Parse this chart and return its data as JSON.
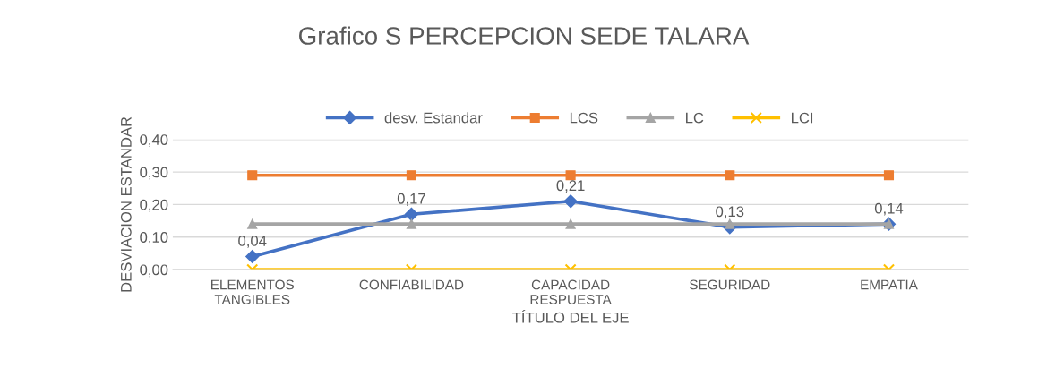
{
  "chart_data": {
    "type": "line",
    "title": "Grafico S PERCEPCION SEDE TALARA",
    "xlabel": "TÍTULO DEL EJE",
    "ylabel": "DESVIACION ESTANDAR",
    "categories": [
      "ELEMENTOS\nTANGIBLES",
      "CONFIABILIDAD",
      "CAPACIDAD\nRESPUESTA",
      "SEGURIDAD",
      "EMPATIA"
    ],
    "series": [
      {
        "name": "desv. Estandar",
        "color": "#4472c4",
        "marker": "diamond",
        "values": [
          0.04,
          0.17,
          0.21,
          0.13,
          0.14
        ],
        "value_labels": [
          "0,04",
          "0,17",
          "0,21",
          "0,13",
          "0,14"
        ]
      },
      {
        "name": "LCS",
        "color": "#ed7d31",
        "marker": "square",
        "values": [
          0.29,
          0.29,
          0.29,
          0.29,
          0.29
        ]
      },
      {
        "name": "LC",
        "color": "#a5a5a5",
        "marker": "triangle",
        "values": [
          0.14,
          0.14,
          0.14,
          0.14,
          0.14
        ]
      },
      {
        "name": "LCI",
        "color": "#ffc000",
        "marker": "cross",
        "values": [
          0,
          0,
          0,
          0,
          0
        ]
      }
    ],
    "ylim": [
      0,
      0.4
    ],
    "yticks": [
      {
        "value": 0,
        "label": "0,00"
      },
      {
        "value": 0.1,
        "label": "0,10"
      },
      {
        "value": 0.2,
        "label": "0,20"
      },
      {
        "value": 0.3,
        "label": "0,30"
      },
      {
        "value": 0.4,
        "label": "0,40"
      }
    ],
    "grid": "y",
    "legend": "top",
    "line_style": "solid"
  }
}
